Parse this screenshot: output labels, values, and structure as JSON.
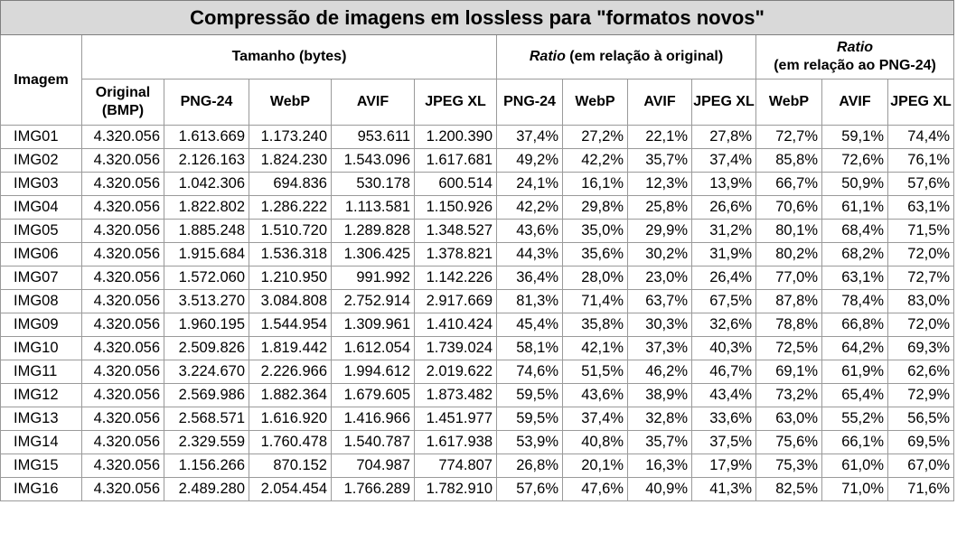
{
  "title": "Compressão de imagens em lossless para \"formatos novos\"",
  "headers": {
    "image": "Imagem",
    "size_group": "Tamanho (bytes)",
    "ratio_original_italic": "Ratio",
    "ratio_original_rest": " (em relação à original)",
    "ratio_png_italic": "Ratio",
    "ratio_png_rest": "(em relação ao PNG-24)",
    "original_line1": "Original",
    "original_line2": "(BMP)",
    "size_cols": [
      "PNG-24",
      "WebP",
      "AVIF",
      "JPEG XL"
    ],
    "ratio_orig_cols": [
      "PNG-24",
      "WebP",
      "AVIF",
      "JPEG XL"
    ],
    "ratio_png_cols": [
      "WebP",
      "AVIF",
      "JPEG XL"
    ]
  },
  "rows": [
    {
      "name": "IMG01",
      "original": "4.320.056",
      "png": "1.613.669",
      "webp": "1.173.240",
      "avif": "953.611",
      "jxl": "1.200.390",
      "r_png": "37,4%",
      "r_webp": "27,2%",
      "r_avif": "22,1%",
      "r_jxl": "27,8%",
      "p_webp": "72,7%",
      "p_avif": "59,1%",
      "p_jxl": "74,4%"
    },
    {
      "name": "IMG02",
      "original": "4.320.056",
      "png": "2.126.163",
      "webp": "1.824.230",
      "avif": "1.543.096",
      "jxl": "1.617.681",
      "r_png": "49,2%",
      "r_webp": "42,2%",
      "r_avif": "35,7%",
      "r_jxl": "37,4%",
      "p_webp": "85,8%",
      "p_avif": "72,6%",
      "p_jxl": "76,1%"
    },
    {
      "name": "IMG03",
      "original": "4.320.056",
      "png": "1.042.306",
      "webp": "694.836",
      "avif": "530.178",
      "jxl": "600.514",
      "r_png": "24,1%",
      "r_webp": "16,1%",
      "r_avif": "12,3%",
      "r_jxl": "13,9%",
      "p_webp": "66,7%",
      "p_avif": "50,9%",
      "p_jxl": "57,6%"
    },
    {
      "name": "IMG04",
      "original": "4.320.056",
      "png": "1.822.802",
      "webp": "1.286.222",
      "avif": "1.113.581",
      "jxl": "1.150.926",
      "r_png": "42,2%",
      "r_webp": "29,8%",
      "r_avif": "25,8%",
      "r_jxl": "26,6%",
      "p_webp": "70,6%",
      "p_avif": "61,1%",
      "p_jxl": "63,1%"
    },
    {
      "name": "IMG05",
      "original": "4.320.056",
      "png": "1.885.248",
      "webp": "1.510.720",
      "avif": "1.289.828",
      "jxl": "1.348.527",
      "r_png": "43,6%",
      "r_webp": "35,0%",
      "r_avif": "29,9%",
      "r_jxl": "31,2%",
      "p_webp": "80,1%",
      "p_avif": "68,4%",
      "p_jxl": "71,5%"
    },
    {
      "name": "IMG06",
      "original": "4.320.056",
      "png": "1.915.684",
      "webp": "1.536.318",
      "avif": "1.306.425",
      "jxl": "1.378.821",
      "r_png": "44,3%",
      "r_webp": "35,6%",
      "r_avif": "30,2%",
      "r_jxl": "31,9%",
      "p_webp": "80,2%",
      "p_avif": "68,2%",
      "p_jxl": "72,0%"
    },
    {
      "name": "IMG07",
      "original": "4.320.056",
      "png": "1.572.060",
      "webp": "1.210.950",
      "avif": "991.992",
      "jxl": "1.142.226",
      "r_png": "36,4%",
      "r_webp": "28,0%",
      "r_avif": "23,0%",
      "r_jxl": "26,4%",
      "p_webp": "77,0%",
      "p_avif": "63,1%",
      "p_jxl": "72,7%"
    },
    {
      "name": "IMG08",
      "original": "4.320.056",
      "png": "3.513.270",
      "webp": "3.084.808",
      "avif": "2.752.914",
      "jxl": "2.917.669",
      "r_png": "81,3%",
      "r_webp": "71,4%",
      "r_avif": "63,7%",
      "r_jxl": "67,5%",
      "p_webp": "87,8%",
      "p_avif": "78,4%",
      "p_jxl": "83,0%"
    },
    {
      "name": "IMG09",
      "original": "4.320.056",
      "png": "1.960.195",
      "webp": "1.544.954",
      "avif": "1.309.961",
      "jxl": "1.410.424",
      "r_png": "45,4%",
      "r_webp": "35,8%",
      "r_avif": "30,3%",
      "r_jxl": "32,6%",
      "p_webp": "78,8%",
      "p_avif": "66,8%",
      "p_jxl": "72,0%"
    },
    {
      "name": "IMG10",
      "original": "4.320.056",
      "png": "2.509.826",
      "webp": "1.819.442",
      "avif": "1.612.054",
      "jxl": "1.739.024",
      "r_png": "58,1%",
      "r_webp": "42,1%",
      "r_avif": "37,3%",
      "r_jxl": "40,3%",
      "p_webp": "72,5%",
      "p_avif": "64,2%",
      "p_jxl": "69,3%"
    },
    {
      "name": "IMG11",
      "original": "4.320.056",
      "png": "3.224.670",
      "webp": "2.226.966",
      "avif": "1.994.612",
      "jxl": "2.019.622",
      "r_png": "74,6%",
      "r_webp": "51,5%",
      "r_avif": "46,2%",
      "r_jxl": "46,7%",
      "p_webp": "69,1%",
      "p_avif": "61,9%",
      "p_jxl": "62,6%"
    },
    {
      "name": "IMG12",
      "original": "4.320.056",
      "png": "2.569.986",
      "webp": "1.882.364",
      "avif": "1.679.605",
      "jxl": "1.873.482",
      "r_png": "59,5%",
      "r_webp": "43,6%",
      "r_avif": "38,9%",
      "r_jxl": "43,4%",
      "p_webp": "73,2%",
      "p_avif": "65,4%",
      "p_jxl": "72,9%"
    },
    {
      "name": "IMG13",
      "original": "4.320.056",
      "png": "2.568.571",
      "webp": "1.616.920",
      "avif": "1.416.966",
      "jxl": "1.451.977",
      "r_png": "59,5%",
      "r_webp": "37,4%",
      "r_avif": "32,8%",
      "r_jxl": "33,6%",
      "p_webp": "63,0%",
      "p_avif": "55,2%",
      "p_jxl": "56,5%"
    },
    {
      "name": "IMG14",
      "original": "4.320.056",
      "png": "2.329.559",
      "webp": "1.760.478",
      "avif": "1.540.787",
      "jxl": "1.617.938",
      "r_png": "53,9%",
      "r_webp": "40,8%",
      "r_avif": "35,7%",
      "r_jxl": "37,5%",
      "p_webp": "75,6%",
      "p_avif": "66,1%",
      "p_jxl": "69,5%"
    },
    {
      "name": "IMG15",
      "original": "4.320.056",
      "png": "1.156.266",
      "webp": "870.152",
      "avif": "704.987",
      "jxl": "774.807",
      "r_png": "26,8%",
      "r_webp": "20,1%",
      "r_avif": "16,3%",
      "r_jxl": "17,9%",
      "p_webp": "75,3%",
      "p_avif": "61,0%",
      "p_jxl": "67,0%"
    },
    {
      "name": "IMG16",
      "original": "4.320.056",
      "png": "2.489.280",
      "webp": "2.054.454",
      "avif": "1.766.289",
      "jxl": "1.782.910",
      "r_png": "57,6%",
      "r_webp": "47,6%",
      "r_avif": "40,9%",
      "r_jxl": "41,3%",
      "p_webp": "82,5%",
      "p_avif": "71,0%",
      "p_jxl": "71,6%"
    }
  ]
}
